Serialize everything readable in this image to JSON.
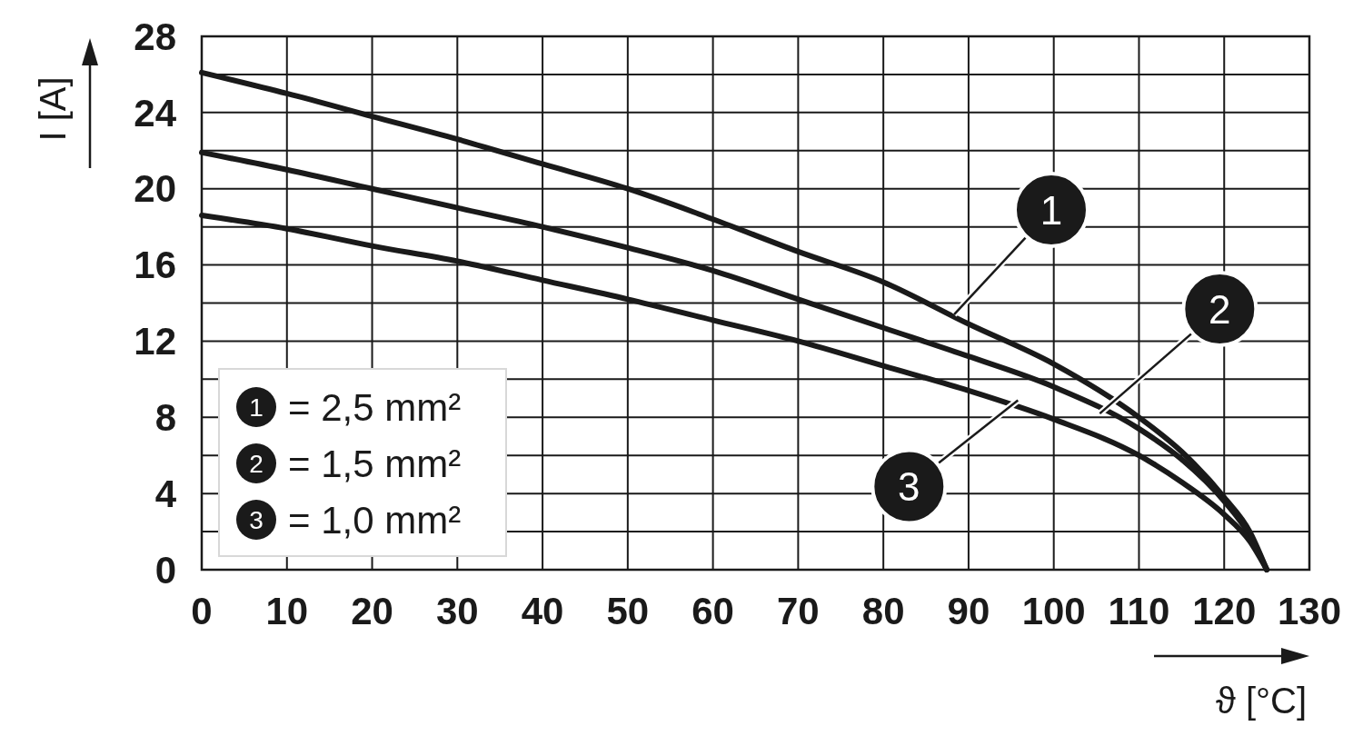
{
  "chart_data": {
    "type": "line",
    "xlabel": "ϑ [°C]",
    "ylabel": "I [A]",
    "xlim": [
      0,
      130
    ],
    "xticks": [
      0,
      10,
      20,
      30,
      40,
      50,
      60,
      70,
      80,
      90,
      100,
      110,
      120,
      130
    ],
    "ylim": [
      0,
      28
    ],
    "yticks": [
      0,
      {
        "value": 2,
        "label": null
      },
      4,
      {
        "value": 6,
        "label": null
      },
      8,
      {
        "value": 10,
        "label": null
      },
      12,
      {
        "value": 14,
        "label": null
      },
      16,
      {
        "value": 18,
        "label": null
      },
      20,
      {
        "value": 22,
        "label": null
      },
      24,
      {
        "value": 26,
        "label": null
      },
      28
    ],
    "grid": true,
    "legend": "bottom left",
    "marker": "none",
    "line_style": "solid",
    "series": [
      {
        "name": "= 2,5 mm²",
        "color": "#1a1a1a",
        "x": [
          0,
          10,
          20,
          30,
          40,
          50,
          60,
          70,
          80,
          90,
          100,
          110,
          115,
          120,
          123,
          125
        ],
        "values": [
          26.1,
          25.0,
          23.8,
          22.6,
          21.3,
          20.0,
          18.4,
          16.7,
          15.1,
          12.9,
          10.8,
          8.0,
          6.2,
          3.8,
          2.0,
          0
        ]
      },
      {
        "name": "= 1,5 mm²",
        "color": "#1a1a1a",
        "x": [
          0,
          10,
          20,
          30,
          40,
          50,
          60,
          70,
          80,
          90,
          100,
          110,
          115,
          120,
          123,
          125
        ],
        "values": [
          21.9,
          21.0,
          20.0,
          19.0,
          18.0,
          16.9,
          15.7,
          14.2,
          12.7,
          11.2,
          9.6,
          7.4,
          5.8,
          3.6,
          1.8,
          0
        ]
      },
      {
        "name": "= 1,0 mm²",
        "color": "#1a1a1a",
        "x": [
          0,
          10,
          20,
          30,
          40,
          50,
          60,
          70,
          80,
          90,
          100,
          110,
          115,
          120,
          123,
          125
        ],
        "values": [
          18.6,
          17.9,
          17.0,
          16.2,
          15.2,
          14.2,
          13.1,
          12.0,
          10.7,
          9.4,
          7.9,
          6.0,
          4.6,
          2.9,
          1.5,
          0
        ]
      }
    ],
    "annotations": [
      {
        "text": "1",
        "x": 88.3,
        "y": 13.4
      },
      {
        "text": "2",
        "x": 105.4,
        "y": 8.2
      },
      {
        "text": "3",
        "x": 95.8,
        "y": 8.9
      }
    ]
  }
}
